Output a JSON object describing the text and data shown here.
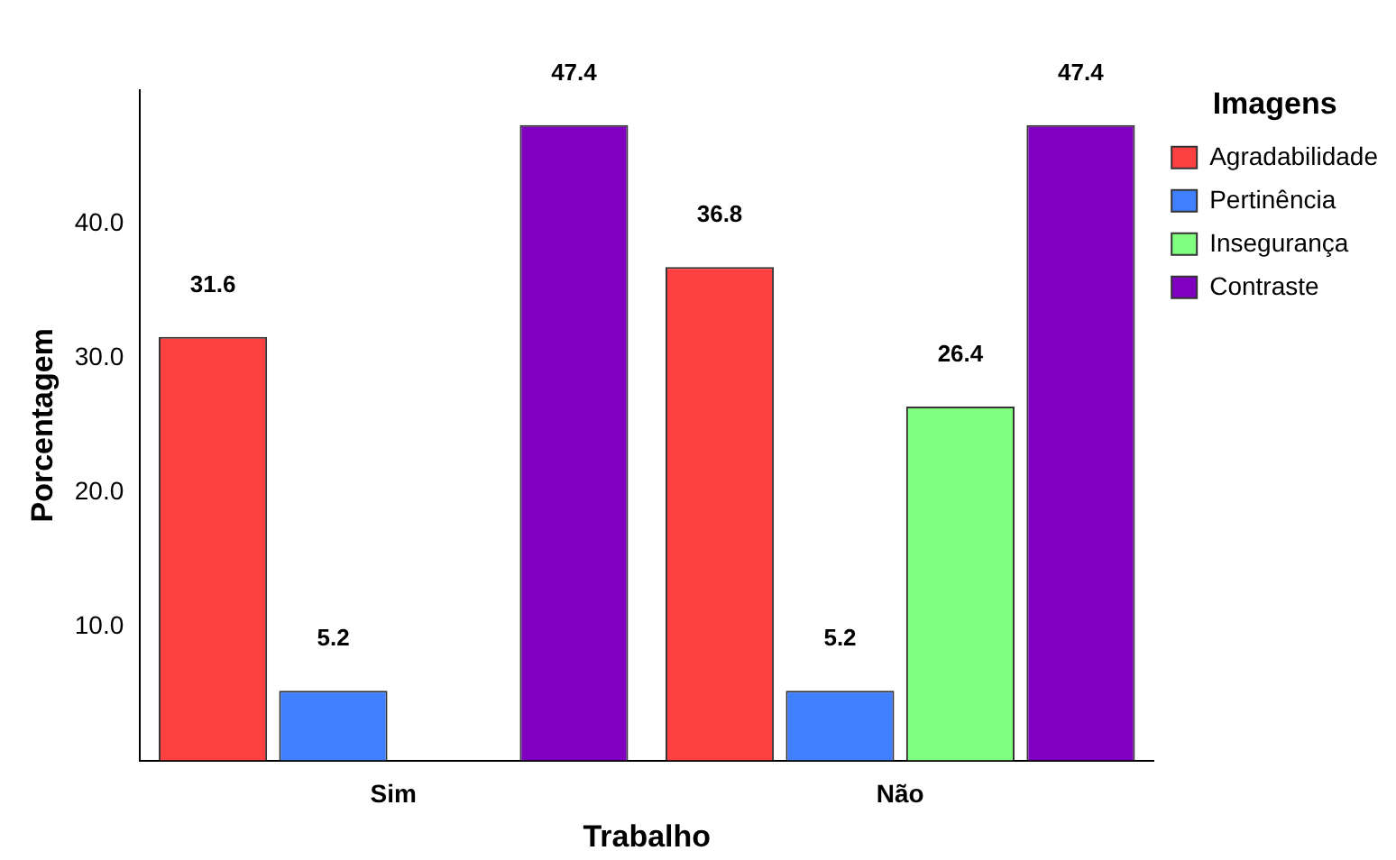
{
  "chart_data": {
    "type": "bar",
    "xlabel": "Trabalho",
    "ylabel": "Porcentagem",
    "legend_title": "Imagens",
    "categories": [
      "Sim",
      "Não"
    ],
    "series": [
      {
        "name": "Agradabilidade",
        "color": "#ff4040",
        "values": [
          31.6,
          36.8
        ]
      },
      {
        "name": "Pertinência",
        "color": "#4080ff",
        "values": [
          5.2,
          5.2
        ]
      },
      {
        "name": "Insegurança",
        "color": "#80ff80",
        "values": [
          null,
          26.4
        ]
      },
      {
        "name": "Contraste",
        "color": "#8000c0",
        "values": [
          47.4,
          47.4
        ]
      }
    ],
    "ylim": [
      0,
      50
    ],
    "yticks": [
      {
        "value": 10,
        "label": "10.0"
      },
      {
        "value": 20,
        "label": "20.0"
      },
      {
        "value": 30,
        "label": "30.0"
      },
      {
        "value": 40,
        "label": "40.0"
      }
    ],
    "grid": false,
    "legend": "top right",
    "data_labels": true
  }
}
